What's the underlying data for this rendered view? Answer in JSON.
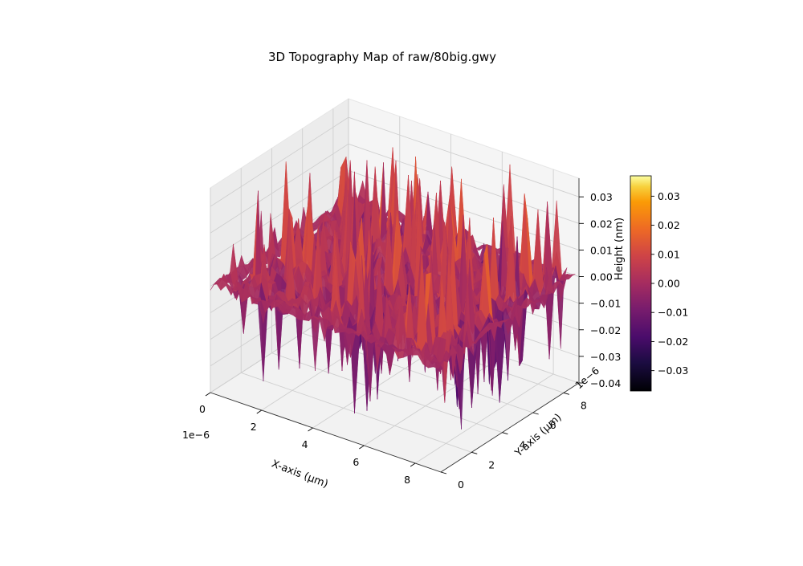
{
  "chart_data": {
    "type": "surface3d",
    "title": "3D Topography Map of raw/80big.gwy",
    "colormap": "inferno",
    "x_axis": {
      "label": "X-axis (µm)",
      "ticks": [
        "0",
        "2",
        "4",
        "6",
        "8"
      ],
      "tick_values": [
        0,
        2,
        4,
        6,
        8
      ],
      "offset_text": "1e−6",
      "range": [
        0,
        9
      ]
    },
    "y_axis": {
      "label": "Y-axis (µm)",
      "ticks": [
        "0",
        "2",
        "4",
        "6",
        "8"
      ],
      "tick_values": [
        0,
        2,
        4,
        6,
        8
      ],
      "offset_text": "1e−6",
      "range": [
        0,
        9
      ]
    },
    "z_axis": {
      "label": "Height (nm)",
      "ticks": [
        "−0.04",
        "−0.03",
        "−0.02",
        "−0.01",
        "0.00",
        "0.01",
        "0.02",
        "0.03"
      ],
      "tick_values": [
        -0.04,
        -0.03,
        -0.02,
        -0.01,
        0.0,
        0.01,
        0.02,
        0.03
      ],
      "range": [
        -0.04,
        0.037
      ]
    },
    "colorbar": {
      "ticks": [
        "0.03",
        "0.02",
        "0.01",
        "0.00",
        "−0.01",
        "−0.02",
        "−0.03"
      ],
      "tick_values": [
        0.03,
        0.02,
        0.01,
        0.0,
        -0.01,
        -0.02,
        -0.03
      ],
      "range": [
        -0.037,
        0.037
      ]
    },
    "surface_stats": {
      "z_min": -0.037,
      "z_max": 0.037
    },
    "grid": true
  }
}
